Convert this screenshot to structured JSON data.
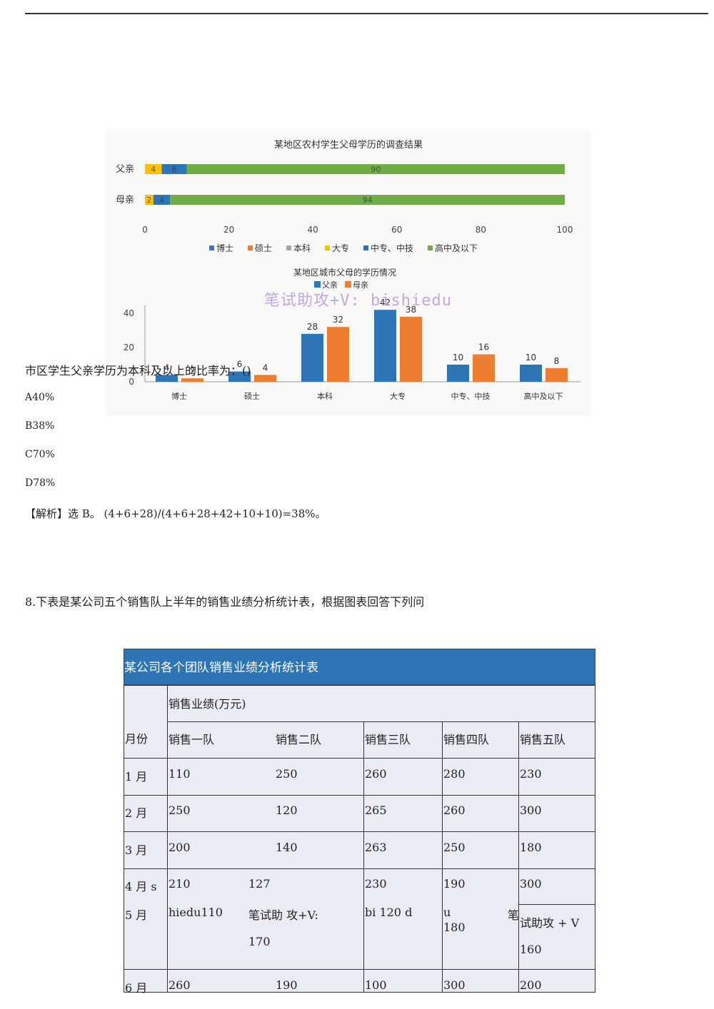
{
  "chart_data": [
    {
      "type": "bar",
      "orientation": "horizontal-stacked",
      "title": "某地区农村学生父母学历的调查结果",
      "categories": [
        "父亲",
        "母亲"
      ],
      "series": [
        {
          "name": "博士",
          "values": [
            0,
            0
          ],
          "color": "#4472c4"
        },
        {
          "name": "硕士",
          "values": [
            0,
            0
          ],
          "color": "#ed7d31"
        },
        {
          "name": "本科",
          "values": [
            0,
            0
          ],
          "color": "#a5a5a5"
        },
        {
          "name": "大专",
          "values": [
            4,
            2
          ],
          "color": "#ffc000"
        },
        {
          "name": "中专、中技",
          "values": [
            6,
            4
          ],
          "color": "#2e75b6"
        },
        {
          "name": "高中及以下",
          "values": [
            90,
            94
          ],
          "color": "#70ad47"
        }
      ],
      "xticks": [
        "0",
        "20",
        "40",
        "60",
        "80",
        "100"
      ],
      "xlim": [
        0,
        100
      ],
      "legend": "bottom"
    },
    {
      "type": "bar",
      "title": "某地区城市父母的学历情况",
      "categories": [
        "博士",
        "硕士",
        "本科",
        "大专",
        "中专、中技",
        "高中及以下"
      ],
      "series": [
        {
          "name": "父亲",
          "values": [
            4,
            6,
            28,
            42,
            10,
            10
          ],
          "color": "#2e75b6"
        },
        {
          "name": "母亲",
          "values": [
            2,
            4,
            32,
            38,
            16,
            8
          ],
          "color": "#ed7d31"
        }
      ],
      "yticks": [
        "0",
        "20",
        "40"
      ],
      "ylim": [
        0,
        45
      ],
      "legend": "top"
    }
  ],
  "watermark": "笔试助攻+V: bishiedu",
  "question": "市区学生父亲学历为本科及以上的比率为：()",
  "options": [
    "A40%",
    "B38%",
    "C70%",
    "D78%"
  ],
  "analysis": "【解析】选 B。 (4+6+28)/(4+6+28+42+10+10)=38%。",
  "q8": "8.下表是某公司五个销售队上半年的销售业绩分析统计表，根据图表回答下列问",
  "table": {
    "title": "某公司各个团队销售业绩分析统计表",
    "month_header": "月份",
    "sales_header": "销售业绩(万元)",
    "teams": [
      "销售一队",
      "销售二队",
      "销售三队",
      "销售四队",
      "销售五队"
    ],
    "rows": [
      {
        "m": "1  月",
        "v": [
          "110",
          "250",
          "260",
          "280",
          "230"
        ]
      },
      {
        "m": "2  月",
        "v": [
          "250",
          "120",
          "265",
          "260",
          "300"
        ]
      },
      {
        "m": "3  月",
        "v": [
          "200",
          "140",
          "263",
          "250",
          "180"
        ]
      },
      {
        "m": "6  月",
        "v": [
          "260",
          "190",
          "100",
          "300",
          "200"
        ]
      }
    ],
    "row4": {
      "m": "4  月  s",
      "v": [
        "210",
        "127",
        "230",
        "190",
        "300"
      ]
    },
    "row5": {
      "m": "5  月",
      "t1": "hiedu110",
      "t2": "笔试助  攻+V:",
      "t2b": "170",
      "t3": "bi  120     d",
      "t4": "u",
      "t4b": "180",
      "t4c": "笔",
      "t5": "试助攻    +    V",
      "t5b": "160"
    }
  }
}
